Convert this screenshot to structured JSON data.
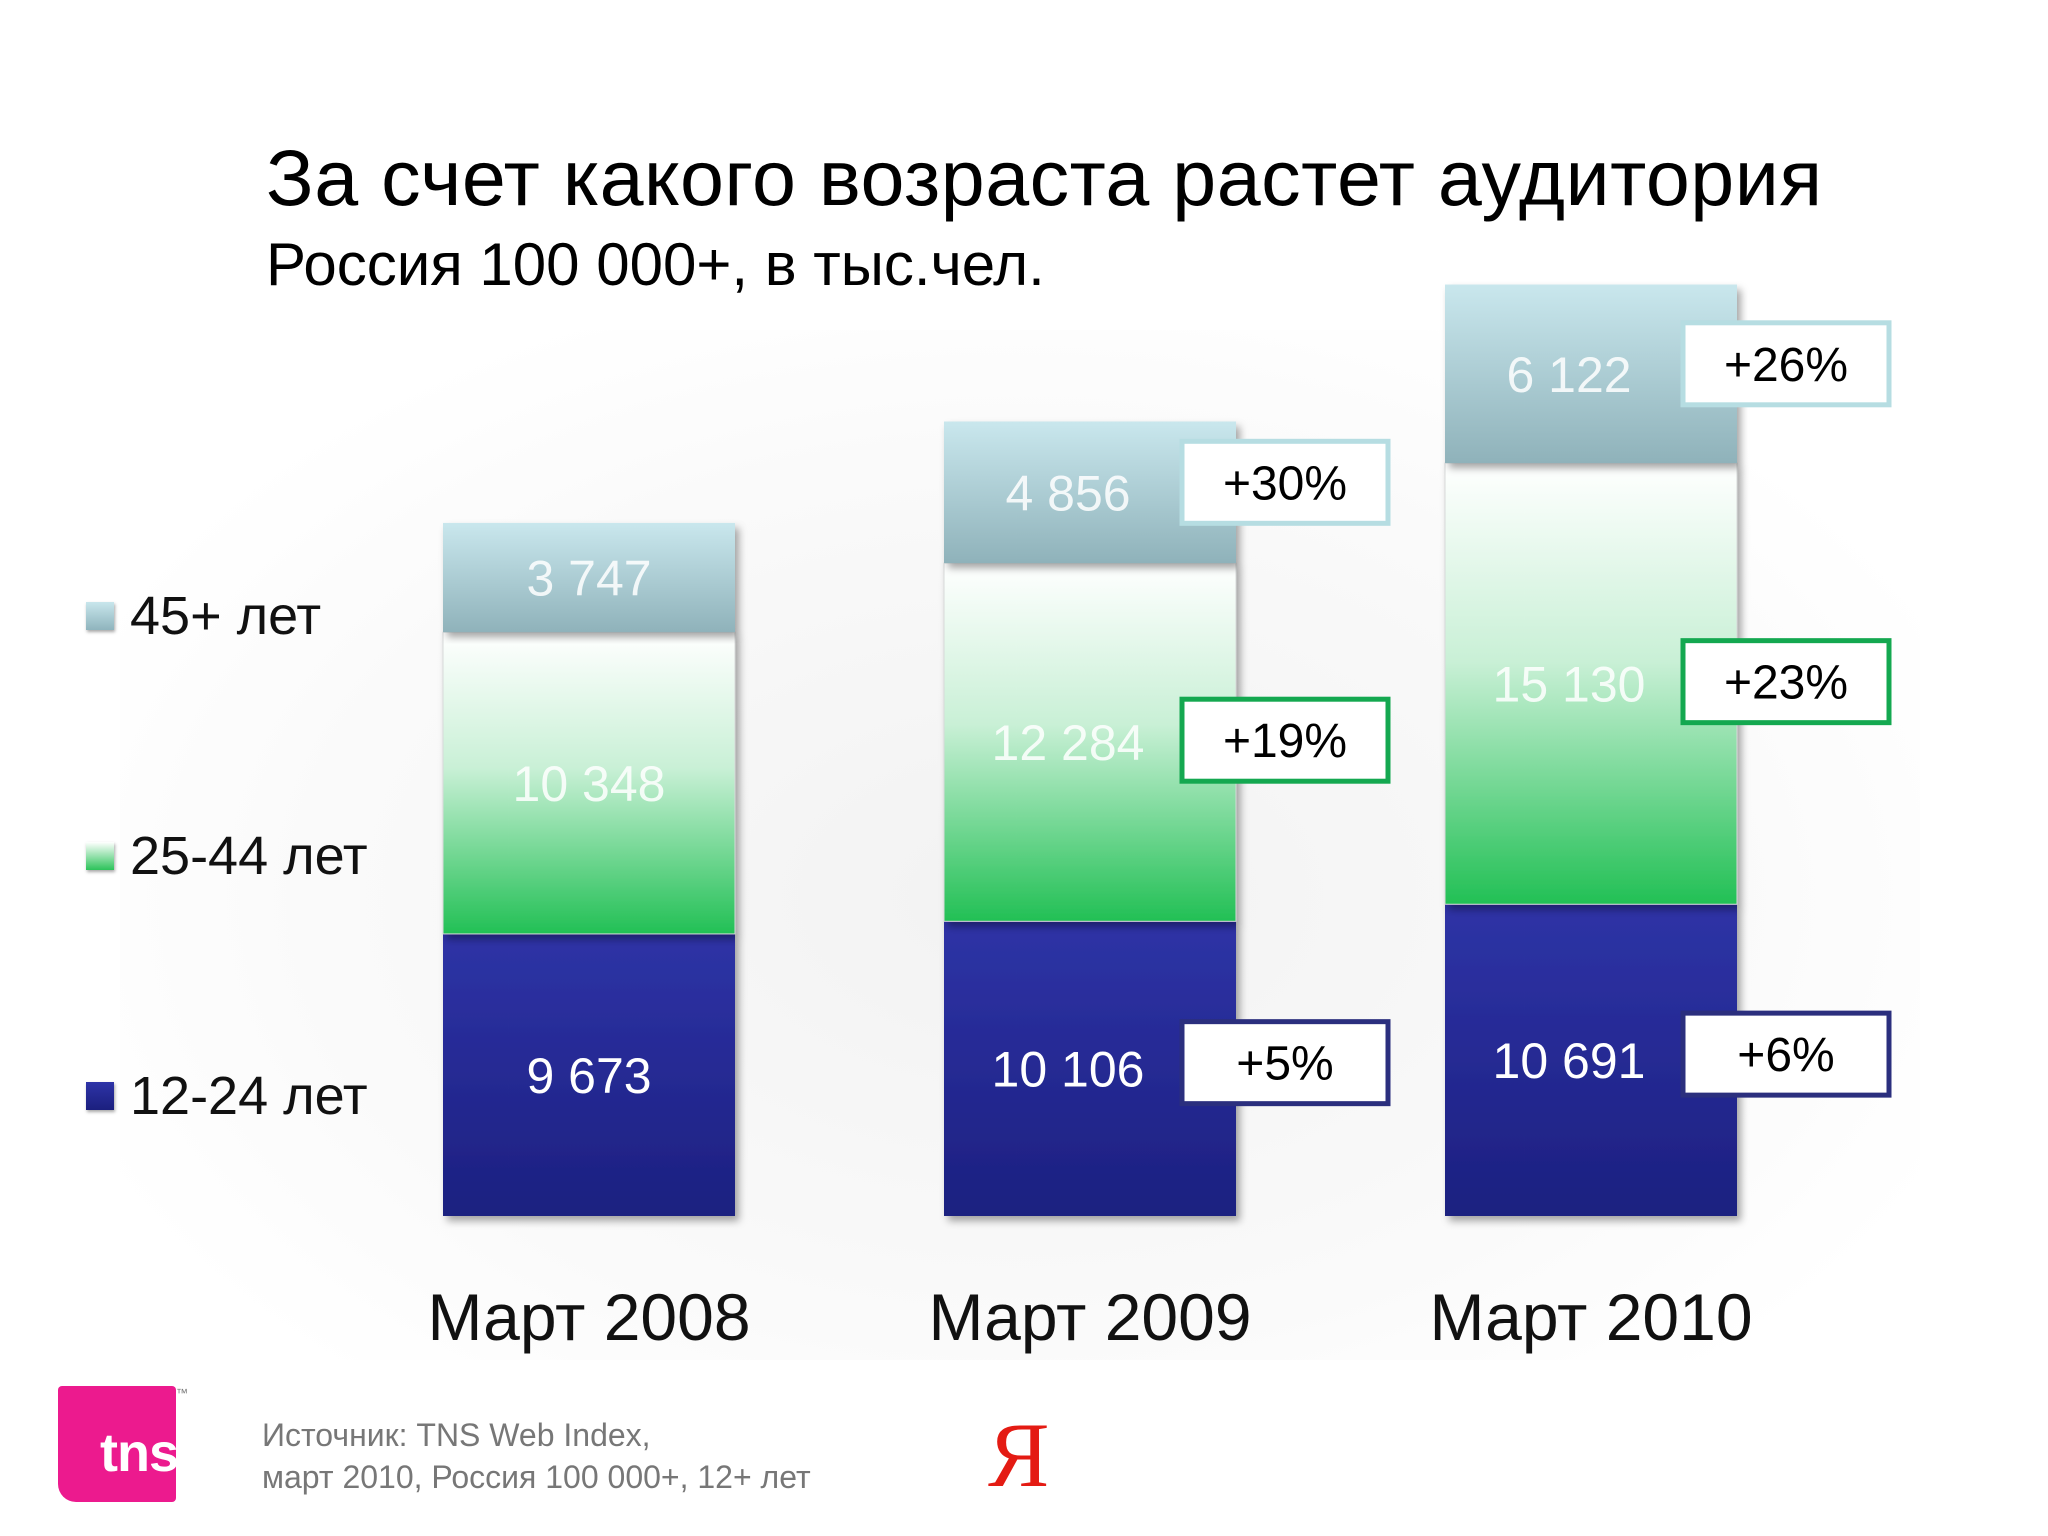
{
  "slide": {
    "title": "За счет какого возраста растет аудитория",
    "subtitle": "Россия 100 000+, в тыс.чел.",
    "source_line1": "Источник: TNS Web Index,",
    "source_line2": "март 2010, Россия 100 000+, 12+ лет",
    "logo_text": "tns",
    "logo_tm": "™",
    "yandex_logo": "Я"
  },
  "colors": {
    "age_12_24": "#1f2587",
    "age_25_44": "#2cc35a",
    "age_45_plus": "#9cc3cb",
    "box_12_24": "#2b2f7e",
    "box_25_44": "#14a850",
    "box_45_plus": "#b6dde2"
  },
  "legend": {
    "items": [
      {
        "label": "45+ лет"
      },
      {
        "label": "25-44 лет"
      },
      {
        "label": "12-24 лет"
      }
    ]
  },
  "chart_data": {
    "type": "bar",
    "stacked": true,
    "categories": [
      "Март 2008",
      "Март 2009",
      "Март 2010"
    ],
    "series": [
      {
        "name": "12-24 лет",
        "values": [
          9673,
          10106,
          10691
        ],
        "labels": [
          "9 673",
          "10 106",
          "10 691"
        ],
        "growth": [
          null,
          "+5%",
          "+6%"
        ]
      },
      {
        "name": "25-44 лет",
        "values": [
          10348,
          12284,
          15130
        ],
        "labels": [
          "10 348",
          "12 284",
          "15 130"
        ],
        "growth": [
          null,
          "+19%",
          "+23%"
        ]
      },
      {
        "name": "45+ лет",
        "values": [
          3747,
          4856,
          6122
        ],
        "labels": [
          "3 747",
          "4 856",
          "6 122"
        ],
        "growth": [
          null,
          "+30%",
          "+26%"
        ]
      }
    ],
    "legend_position": "left",
    "grid": false
  }
}
